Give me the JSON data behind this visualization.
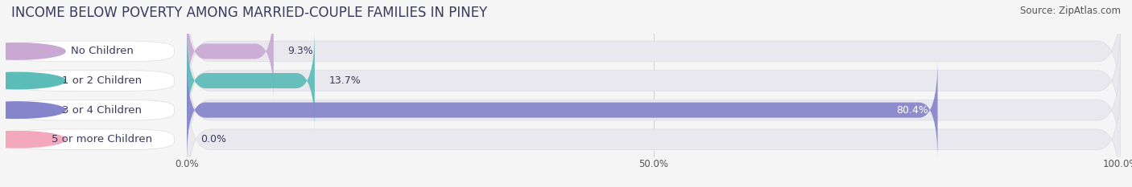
{
  "title": "INCOME BELOW POVERTY AMONG MARRIED-COUPLE FAMILIES IN PINEY",
  "source": "Source: ZipAtlas.com",
  "categories": [
    "No Children",
    "1 or 2 Children",
    "3 or 4 Children",
    "5 or more Children"
  ],
  "values": [
    9.3,
    13.7,
    80.4,
    0.0
  ],
  "bar_colors": [
    "#c9a8d4",
    "#5bbcb8",
    "#8585cc",
    "#f4a8be"
  ],
  "background_color": "#f5f5f5",
  "bar_bg_color": "#e8e8ee",
  "label_bg_color": "#ffffff",
  "xlim": [
    0,
    100
  ],
  "xtick_labels": [
    "0.0%",
    "50.0%",
    "100.0%"
  ],
  "title_fontsize": 12,
  "label_fontsize": 9.5,
  "value_fontsize": 9,
  "source_fontsize": 8.5,
  "title_color": "#3a3a5c",
  "label_color": "#3a3a5c",
  "value_color_dark": "#3a3a5c",
  "value_color_light": "#ffffff",
  "source_color": "#555555"
}
